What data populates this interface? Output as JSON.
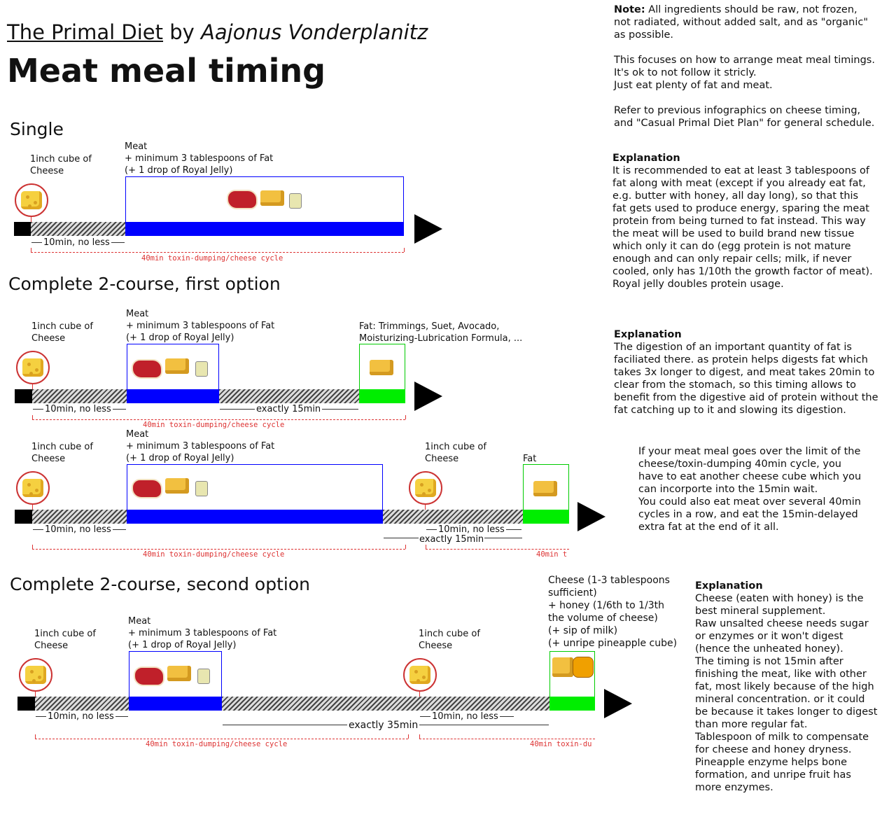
{
  "header": {
    "book": "The Primal Diet",
    "by": "by",
    "author": "Aajonus Vonderplanitz",
    "title": "Meat meal timing"
  },
  "sections": {
    "single": "Single",
    "complete1": "Complete 2-course, first option",
    "complete2": "Complete 2-course, second option"
  },
  "labels": {
    "cheese_cube": "1inch cube of\nCheese",
    "meat": "Meat\n+ minimum 3 tablespoons of Fat\n(+ 1 drop of Royal Jelly)",
    "fat_options": "Fat: Trimmings, Suet, Avocado,\nMoisturizing-Lubrication Formula, ...",
    "fat": "Fat",
    "cheese_honey": "Cheese (1-3 tablespoons\nsufficient)\n+ honey (1/6th to 1/3th\nthe volume of cheese)\n(+ sip of milk)\n(+ unripe pineapple cube)",
    "ten_min": "10min, no less",
    "exactly_15": "exactly 15min",
    "exactly_35": "exactly 35min",
    "cycle": "40min toxin-dumping/cheese cycle",
    "cycle_short1": "40min t",
    "cycle_short2": "40min toxin-du"
  },
  "notes": {
    "note_label": "Note:",
    "note": " All ingredients should be raw, not frozen,\nnot radiated, without added salt, and as \"organic\"\nas possible.\n\nThis focuses on how to arrange meat meal timings.\nIt's ok to not follow it stricly.\nJust eat plenty of fat and meat.\n\nRefer to previous infographics on cheese timing,\nand \"Casual Primal Diet Plan\" for general schedule.",
    "explanation_title": "Explanation",
    "explanation1": "It is recommended to eat at least 3 tablespoons of\nfat along with meat (except if you already eat fat,\ne.g. butter with honey, all day long), so that this\nfat gets used to produce energy, sparing the meat\nprotein from being turned to fat instead. This way\nthe meat will be used to build brand new tissue\nwhich only it can do (egg protein is not mature\nenough and can only repair cells; milk, if never\ncooled, only has 1/10th the growth factor of meat).\nRoyal jelly doubles protein usage.",
    "explanation2": "The digestion of an important quantity of fat is\nfaciliated there. as protein helps digests fat which\ntakes 3x longer to digest, and meat takes 20min to\nclear from the stomach, so this timing allows to\nbenefit from the digestive aid of protein without the\nfat catching up to it and slowing its digestion.",
    "overflow": "If your meat meal goes over the limit of the\ncheese/toxin-dumping 40min cycle, you\nhave to eat another cheese cube which you\ncan incorporte into the 15min wait.\nYou could also eat meat over several 40min\ncycles in a row, and eat the 15min-delayed\nextra fat at the end of it all.",
    "explanation3": "Cheese (eaten with honey) is the\nbest mineral supplement.\nRaw unsalted cheese needs sugar\nor enzymes or it won't digest\n(hence the unheated honey).\nThe timing is not 15min after\nfinishing the meat, like with other\nfat, most likely because of the high\nmineral concentration. or it could\nbe because it takes longer to digest\nthan more regular fat.\nTablespoon of milk to compensate\nfor cheese and honey dryness.\nPineapple enzyme helps bone\nformation, and unripe fruit has\nmore enzymes."
  },
  "colors": {
    "meat_bar": "#0000ff",
    "fat_bar": "#00ee00",
    "cycle_line": "#dd3333"
  }
}
